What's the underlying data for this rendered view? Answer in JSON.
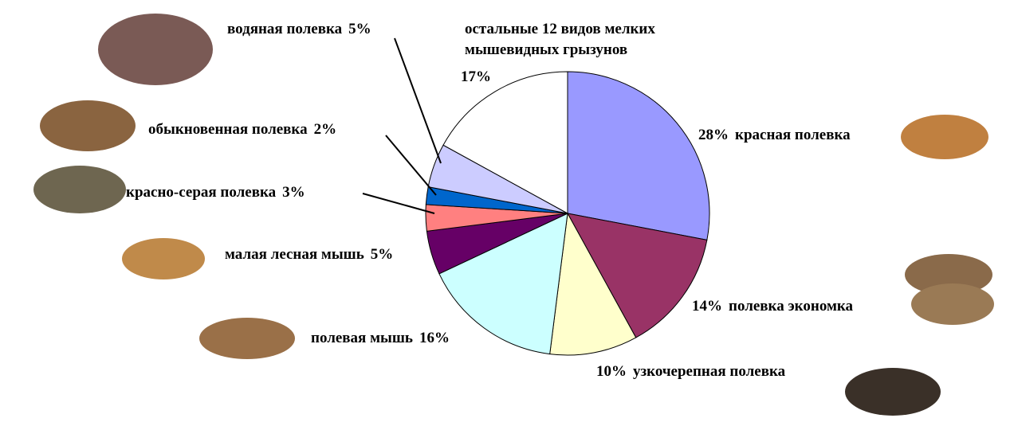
{
  "chart_data": {
    "type": "pie",
    "categories": [
      "красная полевка",
      "полевка экономка",
      "узкочерепная полевка",
      "полевая мышь",
      "малая лесная мышь",
      "красно-серая полевка",
      "обыкновенная полевка",
      "водяная полевка",
      "остальные 12 видов мелких мышевидных грызунов"
    ],
    "values": [
      28,
      14,
      10,
      16,
      5,
      3,
      2,
      5,
      17
    ],
    "value_labels": [
      "28%",
      "14%",
      "10%",
      "16%",
      "5%",
      "3%",
      "2%",
      "5%",
      "17%"
    ],
    "colors": [
      "#9999ff",
      "#993366",
      "#ffffcc",
      "#ccffff",
      "#660066",
      "#ff8080",
      "#0066cc",
      "#ccccff",
      "#ffffff"
    ]
  }
}
